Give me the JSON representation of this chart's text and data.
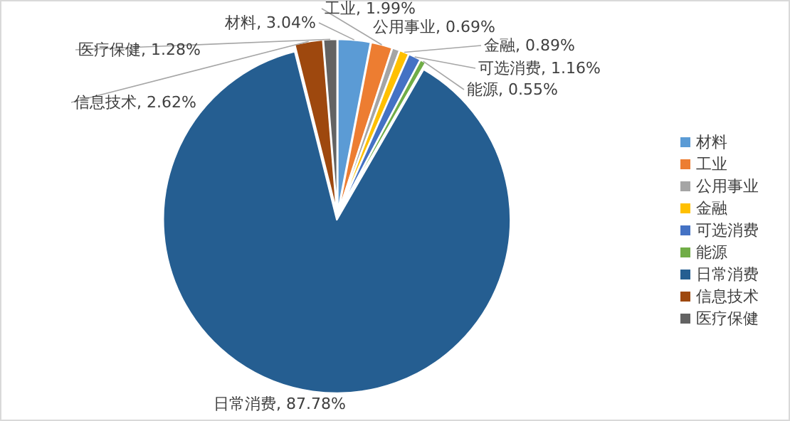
{
  "chart_data": {
    "type": "pie",
    "categories": [
      "材料",
      "工业",
      "公用事业",
      "金融",
      "可选消费",
      "能源",
      "日常消费",
      "信息技术",
      "医疗保健"
    ],
    "values": [
      3.04,
      1.99,
      0.69,
      0.89,
      1.16,
      0.55,
      87.78,
      2.62,
      1.28
    ],
    "value_labels": [
      "材料, 3.04%",
      "工业, 1.99%",
      "公用事业, 0.69%",
      "金融, 0.89%",
      "可选消费, 1.16%",
      "能源, 0.55%",
      "日常消费, 87.78%",
      "信息技术, 2.62%",
      "医疗保健, 1.28%"
    ],
    "colors": [
      "#5b9bd5",
      "#ed7d31",
      "#a5a5a5",
      "#ffc000",
      "#4472c4",
      "#70ad47",
      "#255e91",
      "#9e480e",
      "#636363"
    ],
    "legend": "right"
  }
}
